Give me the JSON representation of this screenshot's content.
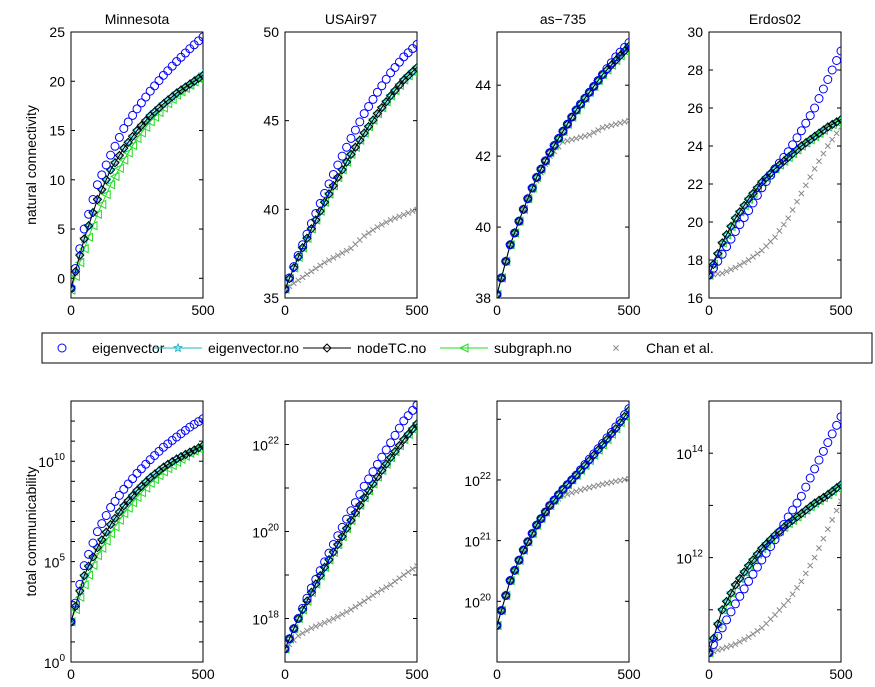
{
  "figure": {
    "row_labels": [
      "natural connectivity",
      "total communicability"
    ]
  },
  "legend": {
    "entries": [
      {
        "name": "eigenvector",
        "marker": "circle",
        "color": "#0000ff"
      },
      {
        "name": "eigenvector.no",
        "marker": "star",
        "color": "#21b5c8"
      },
      {
        "name": "nodeTC.no",
        "marker": "diamond",
        "color": "#000000"
      },
      {
        "name": "subgraph.no",
        "marker": "triangle-left",
        "color": "#22dd22"
      },
      {
        "name": "Chan et al.",
        "marker": "x",
        "color": "#888888"
      }
    ]
  },
  "chart_data": [
    {
      "type": "scatter",
      "title": "Minnesota",
      "ylabel": "natural connectivity",
      "xlim": [
        0,
        500
      ],
      "ylim": [
        -2,
        25
      ],
      "xticks": [
        "0",
        "500"
      ],
      "yticks": [
        "0",
        "5",
        "10",
        "15",
        "20",
        "25"
      ],
      "x": [
        0,
        50,
        100,
        150,
        200,
        250,
        300,
        350,
        400,
        450,
        500
      ],
      "series": [
        {
          "name": "eigenvector",
          "values": [
            -1,
            5,
            9.5,
            12.5,
            15.2,
            17.2,
            19,
            20.6,
            22,
            23.3,
            24.5
          ]
        },
        {
          "name": "eigenvector.no",
          "values": [
            -1,
            4,
            8,
            11,
            13.2,
            15,
            16.5,
            17.7,
            18.8,
            19.7,
            20.7
          ]
        },
        {
          "name": "nodeTC.no",
          "values": [
            -1,
            4,
            8,
            11,
            13.2,
            15,
            16.5,
            17.7,
            18.8,
            19.7,
            20.6
          ]
        },
        {
          "name": "subgraph.no",
          "values": [
            -1.2,
            3,
            6.5,
            9.5,
            12,
            14.2,
            15.9,
            17.3,
            18.6,
            19.6,
            20.6
          ]
        }
      ]
    },
    {
      "type": "scatter",
      "title": "USAir97",
      "ylabel": "",
      "xlim": [
        0,
        500
      ],
      "ylim": [
        35,
        50
      ],
      "xticks": [
        "0",
        "500"
      ],
      "yticks": [
        "35",
        "40",
        "45",
        "50"
      ],
      "x": [
        0,
        50,
        100,
        150,
        200,
        250,
        300,
        350,
        400,
        450,
        500
      ],
      "series": [
        {
          "name": "eigenvector",
          "values": [
            35.5,
            37.4,
            39.2,
            40.9,
            42.5,
            44,
            45.4,
            46.6,
            47.7,
            48.6,
            49.3
          ]
        },
        {
          "name": "eigenvector.no",
          "values": [
            35.5,
            37.3,
            38.9,
            40.4,
            41.8,
            43.1,
            44.3,
            45.4,
            46.4,
            47.3,
            48
          ]
        },
        {
          "name": "nodeTC.no",
          "values": [
            35.5,
            37.3,
            38.9,
            40.4,
            41.8,
            43.1,
            44.3,
            45.4,
            46.4,
            47.3,
            48
          ]
        },
        {
          "name": "subgraph.no",
          "values": [
            35.5,
            37.3,
            38.9,
            40.4,
            41.8,
            43.1,
            44.3,
            45.4,
            46.4,
            47.3,
            48
          ]
        },
        {
          "name": "Chan et al.",
          "values": [
            35.5,
            36,
            36.5,
            37,
            37.4,
            37.8,
            38.5,
            39,
            39.4,
            39.7,
            40
          ]
        }
      ]
    },
    {
      "type": "scatter",
      "title": "as−735",
      "ylabel": "",
      "xlim": [
        0,
        500
      ],
      "ylim": [
        38,
        45.5
      ],
      "xticks": [
        "0",
        "500"
      ],
      "yticks": [
        "38",
        "40",
        "42",
        "44"
      ],
      "x": [
        0,
        50,
        100,
        150,
        200,
        250,
        300,
        350,
        400,
        450,
        500
      ],
      "series": [
        {
          "name": "eigenvector",
          "values": [
            38.1,
            39.5,
            40.5,
            41.4,
            42.1,
            42.7,
            43.3,
            43.8,
            44.3,
            44.8,
            45.2
          ]
        },
        {
          "name": "eigenvector.no",
          "values": [
            38.1,
            39.5,
            40.5,
            41.4,
            42.1,
            42.7,
            43.3,
            43.8,
            44.3,
            44.7,
            45.1
          ]
        },
        {
          "name": "nodeTC.no",
          "values": [
            38.1,
            39.5,
            40.5,
            41.4,
            42.1,
            42.7,
            43.3,
            43.8,
            44.3,
            44.7,
            45.1
          ]
        },
        {
          "name": "subgraph.no",
          "values": [
            38.1,
            39.5,
            40.5,
            41.4,
            42.1,
            42.7,
            43.3,
            43.8,
            44.3,
            44.7,
            45.1
          ]
        },
        {
          "name": "Chan et al.",
          "values": [
            38.1,
            39.5,
            40.5,
            41.3,
            42,
            42.4,
            42.5,
            42.6,
            42.8,
            42.9,
            43
          ]
        }
      ]
    },
    {
      "type": "scatter",
      "title": "Erdos02",
      "ylabel": "",
      "xlim": [
        0,
        500
      ],
      "ylim": [
        16,
        30
      ],
      "xticks": [
        "0",
        "500"
      ],
      "yticks": [
        "16",
        "18",
        "20",
        "22",
        "24",
        "26",
        "28",
        "30"
      ],
      "x": [
        0,
        50,
        100,
        150,
        200,
        250,
        300,
        350,
        400,
        450,
        500
      ],
      "series": [
        {
          "name": "eigenvector",
          "values": [
            17.2,
            18.3,
            19.5,
            20.6,
            21.8,
            22.8,
            23.7,
            24.8,
            26,
            27.5,
            29
          ]
        },
        {
          "name": "eigenvector.no",
          "values": [
            17.2,
            18.9,
            20.2,
            21.2,
            22.1,
            22.8,
            23.4,
            24,
            24.5,
            25,
            25.4
          ]
        },
        {
          "name": "nodeTC.no",
          "values": [
            17.2,
            18.9,
            20.2,
            21.2,
            22.1,
            22.8,
            23.4,
            24,
            24.5,
            25,
            25.4
          ]
        },
        {
          "name": "subgraph.no",
          "values": [
            17.2,
            18.9,
            20.2,
            21.2,
            22.1,
            22.8,
            23.4,
            24,
            24.5,
            25,
            25.4
          ]
        },
        {
          "name": "Chan et al.",
          "values": [
            17.2,
            17.3,
            17.6,
            18,
            18.5,
            19.2,
            20.2,
            21.5,
            22.8,
            24,
            25
          ]
        }
      ]
    },
    {
      "type": "scatter",
      "title": "",
      "ylabel": "total communicability",
      "yscale": "log",
      "xlim": [
        0,
        500
      ],
      "ylim": [
        1,
        10000000000000.0
      ],
      "xticks": [
        "0",
        "500"
      ],
      "yticks": [
        1,
        100000,
        10000000000
      ],
      "x": [
        0,
        50,
        100,
        150,
        200,
        250,
        300,
        350,
        400,
        450,
        500
      ],
      "series": [
        {
          "name": "eigenvector",
          "values": [
            100,
            63000,
            3100000,
            50000000,
            400000000,
            2500000000,
            12000000000,
            50000000000,
            160000000000,
            500000000000,
            1300000000000
          ]
        },
        {
          "name": "eigenvector.no",
          "values": [
            100,
            20000,
            500000,
            7000000,
            60000000,
            350000000,
            1500000000,
            5000000000,
            13000000000,
            28000000000,
            60000000000
          ]
        },
        {
          "name": "nodeTC.no",
          "values": [
            100,
            20000,
            500000,
            7000000,
            60000000,
            350000000,
            1500000000,
            5000000000,
            13000000000,
            28000000000,
            60000000000
          ]
        },
        {
          "name": "subgraph.no",
          "values": [
            100,
            7000,
            200000,
            2500000,
            25000000,
            160000000,
            800000000,
            3000000000,
            9000000000,
            25000000000,
            55000000000
          ]
        }
      ]
    },
    {
      "type": "scatter",
      "title": "",
      "ylabel": "",
      "yscale": "log",
      "xlim": [
        0,
        500
      ],
      "ylim": [
        1e+17,
        1e+23
      ],
      "xticks": [
        "0",
        "500"
      ],
      "yticks": [
        1e+18,
        1e+20,
        1e+22
      ],
      "x": [
        0,
        50,
        100,
        150,
        200,
        250,
        300,
        350,
        400,
        450,
        500
      ],
      "series": [
        {
          "name": "eigenvector",
          "values": [
            2e+17,
            1e+18,
            5e+18,
            2e+19,
            8e+19,
            3e+20,
            1.1e+21,
            3.5e+21,
            1.1e+22,
            3.5e+22,
            8e+22
          ]
        },
        {
          "name": "eigenvector.no",
          "values": [
            2e+17,
            1e+18,
            4e+18,
            1.5e+19,
            5e+19,
            1.8e+20,
            6e+20,
            1.8e+21,
            5e+21,
            1.3e+22,
            3e+22
          ]
        },
        {
          "name": "nodeTC.no",
          "values": [
            2e+17,
            1e+18,
            4e+18,
            1.5e+19,
            5e+19,
            1.8e+20,
            6e+20,
            1.8e+21,
            5e+21,
            1.3e+22,
            3e+22
          ]
        },
        {
          "name": "subgraph.no",
          "values": [
            2e+17,
            1e+18,
            4e+18,
            1.5e+19,
            5e+19,
            1.8e+20,
            6e+20,
            1.8e+21,
            5e+21,
            1.3e+22,
            3e+22
          ]
        },
        {
          "name": "Chan et al.",
          "values": [
            2e+17,
            4e+17,
            6e+17,
            8e+17,
            1.1e+18,
            1.6e+18,
            2.5e+18,
            4e+18,
            6e+18,
            1e+19,
            1.6e+19
          ]
        }
      ]
    },
    {
      "type": "scatter",
      "title": "",
      "ylabel": "",
      "yscale": "log",
      "xlim": [
        0,
        500
      ],
      "ylim": [
        1e+19,
        2e+23
      ],
      "xticks": [
        "0",
        "500"
      ],
      "yticks": [
        1e+20,
        1e+21,
        1e+22
      ],
      "x": [
        0,
        50,
        100,
        150,
        200,
        250,
        300,
        350,
        400,
        450,
        500
      ],
      "series": [
        {
          "name": "eigenvector",
          "values": [
            4e+19,
            2.2e+20,
            7e+20,
            1.8e+21,
            3.8e+21,
            7e+21,
            1.2e+22,
            2.2e+22,
            4e+22,
            7.5e+22,
            1.5e+23
          ]
        },
        {
          "name": "eigenvector.no",
          "values": [
            4e+19,
            2.2e+20,
            7e+20,
            1.8e+21,
            3.8e+21,
            7e+21,
            1.2e+22,
            2.1e+22,
            3.8e+22,
            7e+22,
            1.4e+23
          ]
        },
        {
          "name": "nodeTC.no",
          "values": [
            4e+19,
            2.2e+20,
            7e+20,
            1.8e+21,
            3.8e+21,
            7e+21,
            1.2e+22,
            2.1e+22,
            3.8e+22,
            7e+22,
            1.4e+23
          ]
        },
        {
          "name": "subgraph.no",
          "values": [
            4e+19,
            2.2e+20,
            7e+20,
            1.8e+21,
            3.8e+21,
            7e+21,
            1.2e+22,
            2.1e+22,
            3.8e+22,
            7e+22,
            1.4e+23
          ]
        },
        {
          "name": "Chan et al.",
          "values": [
            4e+19,
            2.2e+20,
            7e+20,
            1.8e+21,
            3.8e+21,
            5.5e+21,
            6.5e+21,
            7.5e+21,
            8.5e+21,
            9.5e+21,
            1.05e+22
          ]
        }
      ]
    },
    {
      "type": "scatter",
      "title": "",
      "ylabel": "",
      "yscale": "log",
      "xlim": [
        0,
        500
      ],
      "ylim": [
        10000000000.0,
        1000000000000000.0
      ],
      "xticks": [
        "0",
        "500"
      ],
      "yticks": [
        1000000000000,
        100000000000000
      ],
      "x": [
        0,
        50,
        100,
        150,
        200,
        250,
        300,
        350,
        400,
        450,
        500
      ],
      "series": [
        {
          "name": "eigenvector",
          "values": [
            15000000000,
            45000000000,
            130000000000,
            350000000000,
            900000000000,
            2200000000000,
            6000000000000,
            15000000000000,
            50000000000000,
            160000000000000,
            500000000000000
          ]
        },
        {
          "name": "eigenvector.no",
          "values": [
            15000000000,
            100000000000,
            300000000000,
            700000000000,
            1500000000000,
            2700000000000,
            4500000000000,
            7000000000000,
            11000000000000,
            16000000000000,
            25000000000000
          ]
        },
        {
          "name": "nodeTC.no",
          "values": [
            15000000000,
            100000000000,
            300000000000,
            700000000000,
            1500000000000,
            2700000000000,
            4500000000000,
            7000000000000,
            11000000000000,
            16000000000000,
            25000000000000
          ]
        },
        {
          "name": "subgraph.no",
          "values": [
            15000000000,
            100000000000,
            300000000000,
            700000000000,
            1500000000000,
            2700000000000,
            4500000000000,
            7000000000000,
            11000000000000,
            16000000000000,
            25000000000000
          ]
        },
        {
          "name": "Chan et al.",
          "values": [
            15000000000,
            18000000000,
            22000000000,
            30000000000,
            45000000000,
            80000000000,
            150000000000,
            350000000000,
            1000000000000,
            3500000000000,
            12000000000000
          ]
        }
      ]
    }
  ]
}
